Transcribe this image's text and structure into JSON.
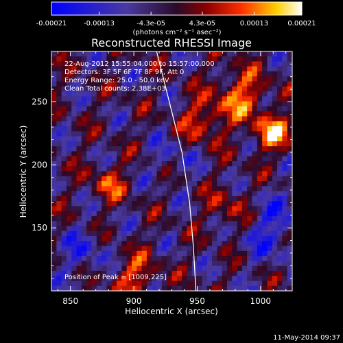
{
  "chart_data": {
    "type": "heatmap",
    "title": "Reconstructed RHESSI Image",
    "xlabel": "Heliocentric X (arcsec)",
    "ylabel": "Heliocentric Y (arcsec)",
    "xlim": [
      835,
      1025
    ],
    "ylim": [
      100,
      290
    ],
    "x_ticks": [
      850,
      900,
      950,
      1000
    ],
    "y_ticks": [
      150,
      200,
      250
    ],
    "colorbar": {
      "colormap": "blue-purple-red-yellow-white",
      "range": [
        -0.00021,
        0.00021
      ],
      "tick_values": [
        -0.00021,
        -0.00013,
        -4.3e-05,
        4.3e-05,
        0.00013,
        0.00021
      ],
      "tick_labels": [
        "-0.00021",
        "-0.00013",
        "-4.3e-05",
        "4.3e-05",
        "0.00013",
        "0.00021"
      ],
      "units": "(photons cm⁻² s⁻¹ asec⁻²)"
    },
    "annotations": [
      "22-Aug-2012 15:55:04.000 to 15:57:00.000",
      "Detectors: 3F 5F 6F 7F 8F 9F, Att 0",
      "Energy Range: 25.0 - 50.0 keV",
      "Clean    Total counts: 2.38E+03"
    ],
    "peak_label": "Position of Peak = [1009,225]",
    "limb": [
      [
        918,
        290
      ],
      [
        928,
        250
      ],
      [
        938,
        210
      ],
      [
        944,
        170
      ],
      [
        947,
        135
      ],
      [
        949,
        100
      ]
    ]
  },
  "footer": {
    "timestamp": "11-May-2014 09:37"
  }
}
